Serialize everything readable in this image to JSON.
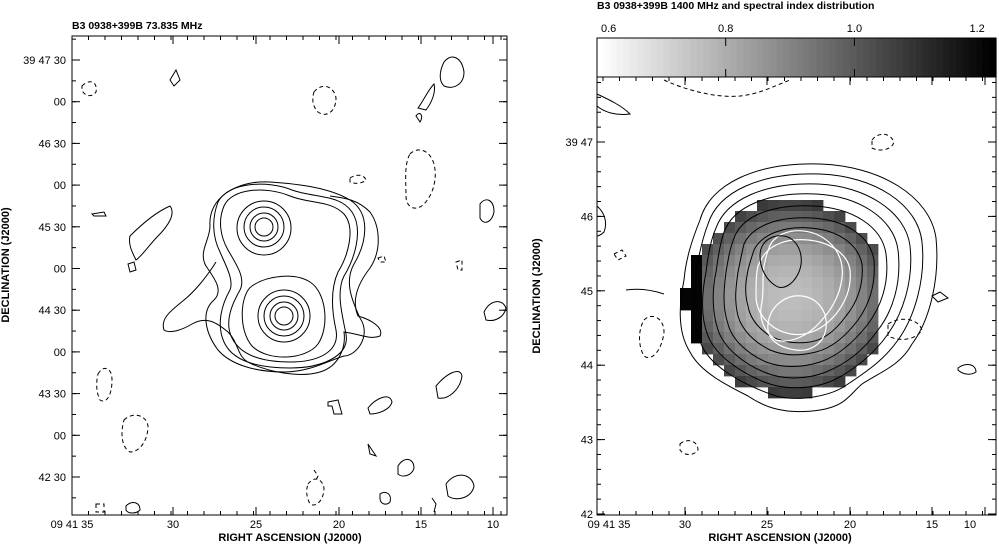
{
  "chart_data": [
    {
      "type": "contour",
      "title": "B3 0938+399B  73.835 MHz",
      "xlabel": "RIGHT ASCENSION (J2000)",
      "ylabel": "DECLINATION (J2000)",
      "x_ticks": [
        "09 41 35",
        "30",
        "25",
        "20",
        "15",
        "10"
      ],
      "y_ticks": [
        "39 47 30",
        "00",
        "46 30",
        "00",
        "45 30",
        "00",
        "44 30",
        "00",
        "43 30",
        "00",
        "42 30"
      ],
      "components": [
        {
          "ra": "09 41 24.4",
          "dec": "39 45 31",
          "contour_levels": 5
        },
        {
          "ra": "09 41 23.1",
          "dec": "39 44 39",
          "contour_levels": 7
        }
      ],
      "grid": false
    },
    {
      "type": "heatmap",
      "title": "B3 0938+399B  1400 MHz and spectral index distribution",
      "xlabel": "RIGHT ASCENSION (J2000)",
      "ylabel": "DECLINATION (J2000)",
      "x_ticks": [
        "09 41 35",
        "30",
        "25",
        "20",
        "15",
        "10"
      ],
      "y_ticks": [
        "39 47",
        "46",
        "45",
        "44",
        "43",
        "42"
      ],
      "colorbar": {
        "ticks": [
          "0.6",
          "0.8",
          "1.0",
          "1.2"
        ],
        "range": [
          0.6,
          1.22
        ],
        "colormap": "white-to-black"
      },
      "spectral_index_grid": {
        "ra_start_s": 30.5,
        "ra_step_s": -0.5,
        "dec_start_arcmin": 46.05,
        "dec_step_arcmin": -0.1,
        "values": [
          [
            0.84,
            0.84,
            0.84,
            0.84,
            0.84,
            0.84,
            0.84,
            0.84,
            0.84,
            0.84,
            0.84,
            0.84,
            0.84,
            0.84,
            0.84,
            0.84,
            0.84,
            0.84,
            0.84,
            0.84,
            0.84,
            0.84,
            0.84,
            0.84,
            0.84,
            0.84,
            0.84
          ]
        ],
        "note_values": "range 0.75–1.22, steepest at edges"
      },
      "grid": false
    }
  ]
}
